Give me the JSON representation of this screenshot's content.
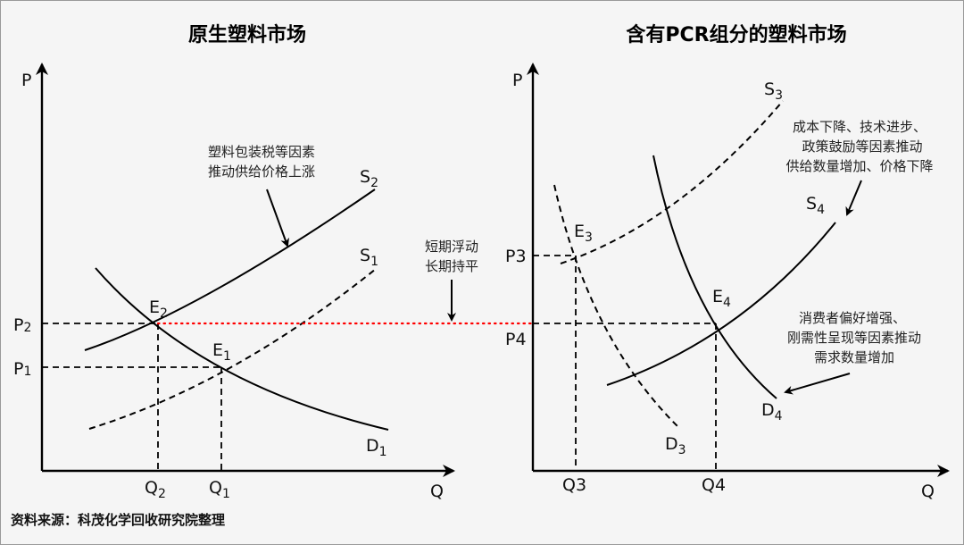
{
  "left_panel": {
    "title": "原生塑料市场",
    "axis": {
      "y": "P",
      "x": "Q"
    },
    "curves": {
      "S2": {
        "base": "S",
        "sub": "2"
      },
      "S1": {
        "base": "S",
        "sub": "1"
      },
      "D1": {
        "base": "D",
        "sub": "1"
      }
    },
    "equilibria": {
      "E2": {
        "base": "E",
        "sub": "2"
      },
      "E1": {
        "base": "E",
        "sub": "1"
      }
    },
    "prices": {
      "P2": {
        "base": "P",
        "sub": "2"
      },
      "P1": {
        "base": "P",
        "sub": "1"
      }
    },
    "quantities": {
      "Q2": {
        "base": "Q",
        "sub": "2"
      },
      "Q1": {
        "base": "Q",
        "sub": "1"
      }
    },
    "annotation": [
      "塑料包装税等因素",
      "推动供给价格上涨"
    ]
  },
  "middle_annotation": [
    "短期浮动",
    "长期持平"
  ],
  "right_panel": {
    "title": "含有PCR组分的塑料市场",
    "axis": {
      "y": "P",
      "x": "Q"
    },
    "curves": {
      "S3": {
        "base": "S",
        "sub": "3"
      },
      "S4": {
        "base": "S",
        "sub": "4"
      },
      "D3": {
        "base": "D",
        "sub": "3"
      },
      "D4": {
        "base": "D",
        "sub": "4"
      }
    },
    "equilibria": {
      "E3": {
        "base": "E",
        "sub": "3"
      },
      "E4": {
        "base": "E",
        "sub": "4"
      }
    },
    "prices": {
      "P3": "P3",
      "P4": "P4"
    },
    "quantities": {
      "Q3": "Q3",
      "Q4": "Q4"
    },
    "supply_annotation": [
      "成本下降、技术进步、",
      "政策鼓励等因素推动",
      "供给数量增加、价格下降"
    ],
    "demand_annotation": [
      "消费者偏好增强、",
      "刚需性呈现等因素推动",
      "需求数量增加"
    ]
  },
  "source": "资料来源：科茂化学回收研究院整理",
  "colors": {
    "background": "#f5f5f5",
    "price_link_line": "#ff0000",
    "lines": "#000000"
  }
}
